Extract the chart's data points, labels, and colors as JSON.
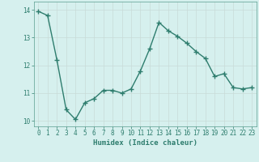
{
  "x": [
    0,
    1,
    2,
    3,
    4,
    5,
    6,
    7,
    8,
    9,
    10,
    11,
    12,
    13,
    14,
    15,
    16,
    17,
    18,
    19,
    20,
    21,
    22,
    23
  ],
  "y": [
    13.95,
    13.8,
    12.2,
    10.4,
    10.05,
    10.65,
    10.8,
    11.1,
    11.1,
    11.0,
    11.15,
    11.8,
    12.6,
    13.55,
    13.25,
    13.05,
    12.8,
    12.5,
    12.25,
    11.6,
    11.7,
    11.2,
    11.15,
    11.2
  ],
  "line_color": "#2e7d6e",
  "marker": "+",
  "marker_size": 4,
  "linewidth": 1.0,
  "xlim": [
    -0.5,
    23.5
  ],
  "ylim": [
    9.8,
    14.3
  ],
  "yticks": [
    10,
    11,
    12,
    13,
    14
  ],
  "xticks": [
    0,
    1,
    2,
    3,
    4,
    5,
    6,
    7,
    8,
    9,
    10,
    11,
    12,
    13,
    14,
    15,
    16,
    17,
    18,
    19,
    20,
    21,
    22,
    23
  ],
  "xlabel": "Humidex (Indice chaleur)",
  "xlabel_fontsize": 6.5,
  "tick_fontsize": 5.5,
  "bg_color": "#d6f0ee",
  "grid_color": "#c8dbd8",
  "spine_color": "#5a9e8e"
}
